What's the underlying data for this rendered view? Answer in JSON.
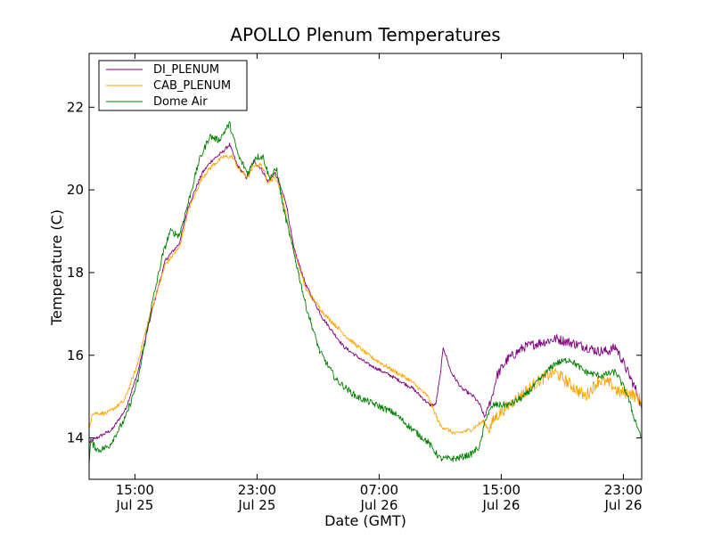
{
  "chart_data": {
    "type": "line",
    "title": "APOLLO Plenum Temperatures",
    "xlabel": "Date (GMT)",
    "ylabel": "Temperature (C)",
    "x_unit": "hours since Jul 25 12:00 GMT",
    "xlim": [
      0,
      36.2
    ],
    "ylim": [
      13,
      23.3
    ],
    "grid": false,
    "legend_position": "top-left",
    "x_ticks": [
      {
        "x": 3,
        "time": "15:00",
        "date": "Jul 25"
      },
      {
        "x": 11,
        "time": "23:00",
        "date": "Jul 25"
      },
      {
        "x": 19,
        "time": "07:00",
        "date": "Jul 26"
      },
      {
        "x": 27,
        "time": "15:00",
        "date": "Jul 26"
      },
      {
        "x": 35,
        "time": "23:00",
        "date": "Jul 26"
      }
    ],
    "y_ticks": [
      {
        "value": 14,
        "label": "14"
      },
      {
        "value": 16,
        "label": "16"
      },
      {
        "value": 18,
        "label": "18"
      },
      {
        "value": 20,
        "label": "20"
      },
      {
        "value": 22,
        "label": "22"
      }
    ],
    "series": [
      {
        "name": "DI_PLENUM",
        "color": "#800080",
        "noise": 0.12,
        "noisy_from": 26.2,
        "points": [
          [
            0,
            13.9
          ],
          [
            0.5,
            14.0
          ],
          [
            1.5,
            14.2
          ],
          [
            2.4,
            14.7
          ],
          [
            3.2,
            15.6
          ],
          [
            4.2,
            17.2
          ],
          [
            5.0,
            18.3
          ],
          [
            5.9,
            18.7
          ],
          [
            6.5,
            19.6
          ],
          [
            7.4,
            20.4
          ],
          [
            8.0,
            20.7
          ],
          [
            8.7,
            20.9
          ],
          [
            9.2,
            21.1
          ],
          [
            9.7,
            20.6
          ],
          [
            10.3,
            20.3
          ],
          [
            10.8,
            20.7
          ],
          [
            11.3,
            20.5
          ],
          [
            11.7,
            20.2
          ],
          [
            12.2,
            20.4
          ],
          [
            12.9,
            19.7
          ],
          [
            13.4,
            18.6
          ],
          [
            14.2,
            17.7
          ],
          [
            15.3,
            16.9
          ],
          [
            16.7,
            16.2
          ],
          [
            18.2,
            15.8
          ],
          [
            19.8,
            15.5
          ],
          [
            21.2,
            15.2
          ],
          [
            22.3,
            14.8
          ],
          [
            22.7,
            14.8
          ],
          [
            23.0,
            15.5
          ],
          [
            23.2,
            16.2
          ],
          [
            23.7,
            15.6
          ],
          [
            24.4,
            15.2
          ],
          [
            25.2,
            15.0
          ],
          [
            25.6,
            14.8
          ],
          [
            25.9,
            14.5
          ],
          [
            26.4,
            15.0
          ],
          [
            26.7,
            15.5
          ],
          [
            27.4,
            15.9
          ],
          [
            28.5,
            16.2
          ],
          [
            29.5,
            16.3
          ],
          [
            30.6,
            16.4
          ],
          [
            31.6,
            16.3
          ],
          [
            32.6,
            16.2
          ],
          [
            33.3,
            16.1
          ],
          [
            34.0,
            16.1
          ],
          [
            34.5,
            16.2
          ],
          [
            34.9,
            15.9
          ],
          [
            35.4,
            15.5
          ],
          [
            35.9,
            15.1
          ],
          [
            36.2,
            14.7
          ]
        ]
      },
      {
        "name": "CAB_PLENUM",
        "color": "#ffa500",
        "noise": 0.15,
        "noisy_from": 26.2,
        "points": [
          [
            0,
            14.2
          ],
          [
            0.2,
            14.6
          ],
          [
            1.2,
            14.6
          ],
          [
            2.3,
            14.9
          ],
          [
            3.1,
            15.7
          ],
          [
            4.0,
            17.0
          ],
          [
            5.0,
            18.2
          ],
          [
            5.9,
            18.6
          ],
          [
            6.5,
            19.5
          ],
          [
            7.4,
            20.3
          ],
          [
            8.1,
            20.6
          ],
          [
            8.8,
            20.8
          ],
          [
            9.4,
            20.8
          ],
          [
            9.8,
            20.5
          ],
          [
            10.4,
            20.3
          ],
          [
            10.8,
            20.6
          ],
          [
            11.3,
            20.6
          ],
          [
            11.7,
            20.2
          ],
          [
            12.2,
            20.3
          ],
          [
            12.7,
            19.8
          ],
          [
            13.2,
            18.8
          ],
          [
            14.2,
            17.6
          ],
          [
            15.4,
            17.0
          ],
          [
            17.0,
            16.4
          ],
          [
            18.3,
            16.0
          ],
          [
            19.6,
            15.7
          ],
          [
            21.0,
            15.4
          ],
          [
            22.2,
            15.0
          ],
          [
            23.0,
            14.3
          ],
          [
            24.0,
            14.1
          ],
          [
            25.0,
            14.2
          ],
          [
            25.8,
            14.4
          ],
          [
            26.2,
            14.2
          ],
          [
            26.6,
            14.5
          ],
          [
            27.5,
            14.8
          ],
          [
            28.5,
            15.1
          ],
          [
            29.5,
            15.4
          ],
          [
            30.5,
            15.6
          ],
          [
            31.5,
            15.3
          ],
          [
            32.5,
            15.0
          ],
          [
            33.4,
            15.4
          ],
          [
            34.2,
            15.3
          ],
          [
            34.7,
            15.1
          ],
          [
            35.4,
            15.1
          ],
          [
            36.2,
            14.9
          ]
        ]
      },
      {
        "name": "Dome Air",
        "color": "#008000",
        "noise": 0.08,
        "noisy_from": 0,
        "points": [
          [
            0,
            13.4
          ],
          [
            0.1,
            13.9
          ],
          [
            0.6,
            13.7
          ],
          [
            1.3,
            13.8
          ],
          [
            2.4,
            14.5
          ],
          [
            3.2,
            15.4
          ],
          [
            4.1,
            17.2
          ],
          [
            4.8,
            18.4
          ],
          [
            5.3,
            19.0
          ],
          [
            5.9,
            18.9
          ],
          [
            6.5,
            19.7
          ],
          [
            7.2,
            20.7
          ],
          [
            7.9,
            21.3
          ],
          [
            8.5,
            21.2
          ],
          [
            9.2,
            21.6
          ],
          [
            9.8,
            20.8
          ],
          [
            10.4,
            20.4
          ],
          [
            10.9,
            20.8
          ],
          [
            11.4,
            20.8
          ],
          [
            11.8,
            20.3
          ],
          [
            12.3,
            20.5
          ],
          [
            12.7,
            19.6
          ],
          [
            13.4,
            18.5
          ],
          [
            14.2,
            17.2
          ],
          [
            15.1,
            16.1
          ],
          [
            16.2,
            15.4
          ],
          [
            17.5,
            15.0
          ],
          [
            18.8,
            14.8
          ],
          [
            20.0,
            14.6
          ],
          [
            21.2,
            14.2
          ],
          [
            22.2,
            13.9
          ],
          [
            23.0,
            13.5
          ],
          [
            24.0,
            13.5
          ],
          [
            25.0,
            13.6
          ],
          [
            25.6,
            13.8
          ],
          [
            26.0,
            14.5
          ],
          [
            26.5,
            14.8
          ],
          [
            27.5,
            14.8
          ],
          [
            28.5,
            15.0
          ],
          [
            29.5,
            15.4
          ],
          [
            30.5,
            15.8
          ],
          [
            31.5,
            15.9
          ],
          [
            32.5,
            15.6
          ],
          [
            33.5,
            15.5
          ],
          [
            34.5,
            15.6
          ],
          [
            35.2,
            15.1
          ],
          [
            35.7,
            14.5
          ],
          [
            36.2,
            14.0
          ]
        ]
      }
    ]
  }
}
